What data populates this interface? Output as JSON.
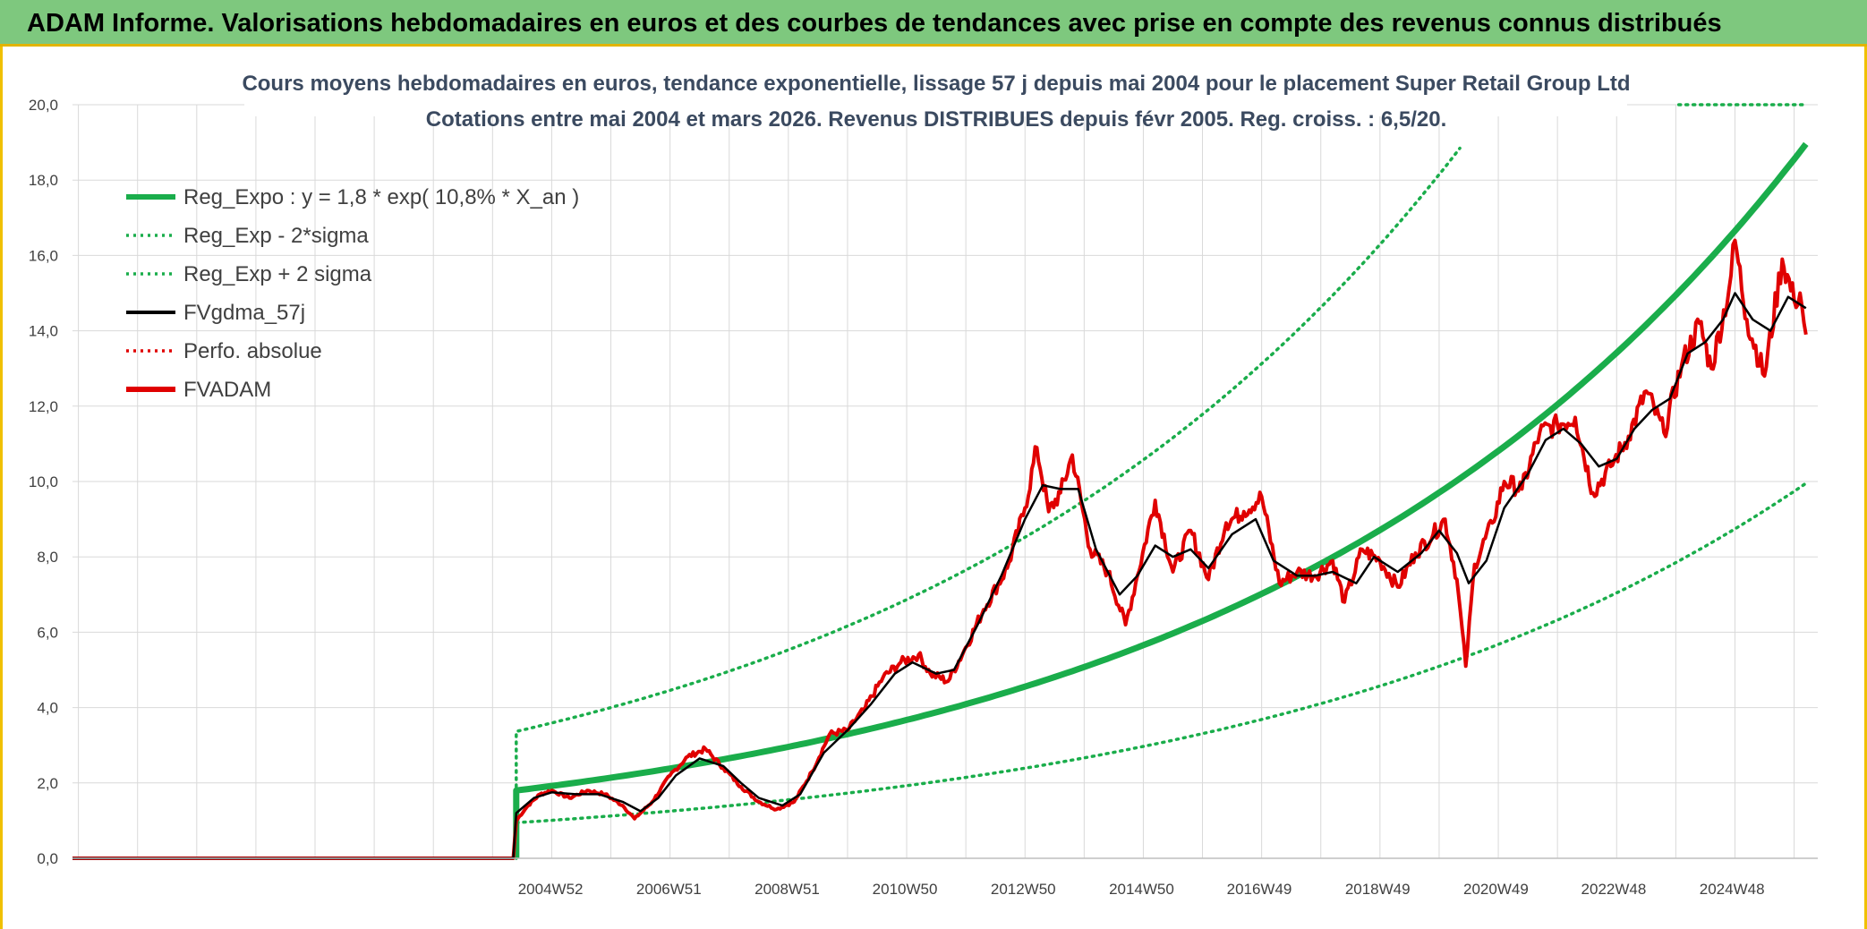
{
  "header": {
    "title": "ADAM Informe. Valorisations hebdomadaires en euros et des courbes de tendances avec prise en compte des revenus connus distribués"
  },
  "colors": {
    "header_bg": "#7ec87e",
    "trend": "#1aad4b",
    "fvadam": "#e00000",
    "fvgdma": "#000000",
    "perfo": "#e00000",
    "grid": "#d9d9d9"
  },
  "chart_data": {
    "type": "line",
    "title_line1": "Cours moyens hebdomadaires en euros, tendance exponentielle, lissage 57 j depuis mai 2004 pour le placement Super Retail Group Ltd",
    "title_line2": "Cotations entre mai 2004 et mars 2026. Revenus DISTRIBUES depuis févr 2005. Reg. croiss. : 6,5/20.",
    "xlabel": "",
    "ylabel": "",
    "ylim": [
      0,
      20
    ],
    "yticks": [
      "0,0",
      "2,0",
      "4,0",
      "6,0",
      "8,0",
      "10,0",
      "12,0",
      "14,0",
      "16,0",
      "18,0",
      "20,0"
    ],
    "xlim": [
      1996.9,
      2026.4
    ],
    "xticks": [
      {
        "label": "2004W52",
        "year": 2004.98
      },
      {
        "label": "2006W51",
        "year": 2006.98
      },
      {
        "label": "2008W51",
        "year": 2008.98
      },
      {
        "label": "2010W50",
        "year": 2010.97
      },
      {
        "label": "2012W50",
        "year": 2012.97
      },
      {
        "label": "2014W50",
        "year": 2014.97
      },
      {
        "label": "2016W49",
        "year": 2016.96
      },
      {
        "label": "2018W49",
        "year": 2018.96
      },
      {
        "label": "2020W49",
        "year": 2020.96
      },
      {
        "label": "2022W48",
        "year": 2022.95
      },
      {
        "label": "2024W48",
        "year": 2024.95
      }
    ],
    "legend": [
      {
        "key": "reg",
        "label": "Reg_Expo : y = 1,8 * exp( 10,8% *  X_an )",
        "style": "thick-solid",
        "color": "#1aad4b"
      },
      {
        "key": "low",
        "label": "Reg_Exp - 2*sigma",
        "style": "dotted",
        "color": "#1aad4b"
      },
      {
        "key": "high",
        "label": "Reg_Exp + 2 sigma",
        "style": "dotted",
        "color": "#1aad4b"
      },
      {
        "key": "gdma",
        "label": "FVgdma_57j",
        "style": "solid",
        "color": "#000000"
      },
      {
        "key": "perfo",
        "label": "Perfo. absolue",
        "style": "dotted",
        "color": "#e00000"
      },
      {
        "key": "adam",
        "label": "FVADAM",
        "style": "thick-solid",
        "color": "#e00000"
      }
    ],
    "series": [
      {
        "name": "Reg_Expo",
        "model": {
          "a": 1.8,
          "rate": 0.108,
          "start": 2004.4,
          "end": 2026.2
        }
      },
      {
        "name": "Reg_Exp - 2*sigma",
        "model": {
          "factor": 0.525,
          "start": 2004.4,
          "end": 2026.2
        }
      },
      {
        "name": "Reg_Exp + 2 sigma",
        "model": {
          "factor": 1.87,
          "start": 2004.4,
          "end": 2026.2,
          "cap": 20
        }
      },
      {
        "name": "FVADAM",
        "points": [
          [
            1996.9,
            0.0
          ],
          [
            2004.35,
            0.0
          ],
          [
            2004.4,
            1.0
          ],
          [
            2004.6,
            1.4
          ],
          [
            2004.8,
            1.7
          ],
          [
            2005.0,
            1.8
          ],
          [
            2005.3,
            1.6
          ],
          [
            2005.6,
            1.8
          ],
          [
            2005.9,
            1.7
          ],
          [
            2006.2,
            1.4
          ],
          [
            2006.4,
            1.05
          ],
          [
            2006.7,
            1.5
          ],
          [
            2007.0,
            2.2
          ],
          [
            2007.3,
            2.7
          ],
          [
            2007.6,
            2.9
          ],
          [
            2007.9,
            2.4
          ],
          [
            2008.2,
            1.9
          ],
          [
            2008.5,
            1.5
          ],
          [
            2008.8,
            1.3
          ],
          [
            2009.1,
            1.5
          ],
          [
            2009.4,
            2.3
          ],
          [
            2009.7,
            3.3
          ],
          [
            2010.0,
            3.4
          ],
          [
            2010.3,
            4.0
          ],
          [
            2010.6,
            4.8
          ],
          [
            2010.9,
            5.2
          ],
          [
            2011.2,
            5.4
          ],
          [
            2011.4,
            4.9
          ],
          [
            2011.7,
            4.7
          ],
          [
            2012.0,
            5.6
          ],
          [
            2012.3,
            6.6
          ],
          [
            2012.7,
            7.7
          ],
          [
            2013.0,
            9.3
          ],
          [
            2013.2,
            10.9
          ],
          [
            2013.4,
            9.2
          ],
          [
            2013.6,
            9.7
          ],
          [
            2013.8,
            10.7
          ],
          [
            2014.1,
            8.2
          ],
          [
            2014.4,
            7.6
          ],
          [
            2014.7,
            6.2
          ],
          [
            2014.9,
            7.5
          ],
          [
            2015.2,
            9.5
          ],
          [
            2015.5,
            7.6
          ],
          [
            2015.8,
            8.7
          ],
          [
            2016.1,
            7.4
          ],
          [
            2016.4,
            8.9
          ],
          [
            2016.7,
            9.2
          ],
          [
            2017.0,
            9.6
          ],
          [
            2017.3,
            7.3
          ],
          [
            2017.6,
            7.6
          ],
          [
            2017.9,
            7.5
          ],
          [
            2018.2,
            7.9
          ],
          [
            2018.4,
            6.8
          ],
          [
            2018.7,
            8.2
          ],
          [
            2019.0,
            7.9
          ],
          [
            2019.3,
            7.2
          ],
          [
            2019.6,
            8.1
          ],
          [
            2019.9,
            8.6
          ],
          [
            2020.1,
            9.0
          ],
          [
            2020.3,
            7.4
          ],
          [
            2020.45,
            5.1
          ],
          [
            2020.6,
            7.8
          ],
          [
            2020.9,
            8.9
          ],
          [
            2021.1,
            10.0
          ],
          [
            2021.4,
            9.8
          ],
          [
            2021.7,
            11.3
          ],
          [
            2022.0,
            11.5
          ],
          [
            2022.3,
            11.7
          ],
          [
            2022.6,
            9.7
          ],
          [
            2022.9,
            10.4
          ],
          [
            2023.2,
            11.2
          ],
          [
            2023.5,
            12.4
          ],
          [
            2023.8,
            11.3
          ],
          [
            2024.1,
            13.1
          ],
          [
            2024.4,
            14.2
          ],
          [
            2024.6,
            13.0
          ],
          [
            2024.9,
            15.1
          ],
          [
            2025.0,
            16.4
          ],
          [
            2025.2,
            14.3
          ],
          [
            2025.5,
            12.8
          ],
          [
            2025.8,
            15.9
          ],
          [
            2026.0,
            14.8
          ],
          [
            2026.1,
            15.0
          ],
          [
            2026.2,
            13.9
          ]
        ]
      },
      {
        "name": "FVgdma_57j",
        "points": [
          [
            1996.9,
            0.0
          ],
          [
            2004.35,
            0.0
          ],
          [
            2004.4,
            1.2
          ],
          [
            2004.7,
            1.6
          ],
          [
            2005.0,
            1.75
          ],
          [
            2005.4,
            1.7
          ],
          [
            2005.8,
            1.7
          ],
          [
            2006.2,
            1.5
          ],
          [
            2006.5,
            1.25
          ],
          [
            2006.8,
            1.6
          ],
          [
            2007.1,
            2.2
          ],
          [
            2007.5,
            2.65
          ],
          [
            2007.9,
            2.45
          ],
          [
            2008.2,
            2.0
          ],
          [
            2008.5,
            1.6
          ],
          [
            2008.9,
            1.4
          ],
          [
            2009.2,
            1.7
          ],
          [
            2009.6,
            2.8
          ],
          [
            2010.0,
            3.4
          ],
          [
            2010.4,
            4.1
          ],
          [
            2010.8,
            4.9
          ],
          [
            2011.1,
            5.2
          ],
          [
            2011.5,
            4.9
          ],
          [
            2011.8,
            5.0
          ],
          [
            2012.2,
            6.2
          ],
          [
            2012.6,
            7.5
          ],
          [
            2013.0,
            9.0
          ],
          [
            2013.3,
            9.9
          ],
          [
            2013.6,
            9.8
          ],
          [
            2013.9,
            9.8
          ],
          [
            2014.2,
            8.2
          ],
          [
            2014.6,
            7.0
          ],
          [
            2014.9,
            7.5
          ],
          [
            2015.2,
            8.3
          ],
          [
            2015.5,
            8.0
          ],
          [
            2015.8,
            8.2
          ],
          [
            2016.1,
            7.7
          ],
          [
            2016.5,
            8.6
          ],
          [
            2016.9,
            9.0
          ],
          [
            2017.2,
            7.9
          ],
          [
            2017.6,
            7.5
          ],
          [
            2017.9,
            7.5
          ],
          [
            2018.2,
            7.6
          ],
          [
            2018.6,
            7.3
          ],
          [
            2018.9,
            8.0
          ],
          [
            2019.3,
            7.6
          ],
          [
            2019.7,
            8.1
          ],
          [
            2020.0,
            8.7
          ],
          [
            2020.3,
            8.1
          ],
          [
            2020.5,
            7.3
          ],
          [
            2020.8,
            7.9
          ],
          [
            2021.1,
            9.3
          ],
          [
            2021.5,
            10.2
          ],
          [
            2021.8,
            11.1
          ],
          [
            2022.1,
            11.4
          ],
          [
            2022.4,
            11.0
          ],
          [
            2022.7,
            10.4
          ],
          [
            2023.0,
            10.6
          ],
          [
            2023.3,
            11.4
          ],
          [
            2023.6,
            11.9
          ],
          [
            2023.9,
            12.2
          ],
          [
            2024.2,
            13.4
          ],
          [
            2024.5,
            13.7
          ],
          [
            2024.8,
            14.3
          ],
          [
            2025.0,
            15.0
          ],
          [
            2025.3,
            14.3
          ],
          [
            2025.6,
            14.0
          ],
          [
            2025.9,
            14.9
          ],
          [
            2026.2,
            14.6
          ]
        ]
      },
      {
        "name": "Perfo. absolue",
        "points": [
          [
            1996.9,
            0.0
          ],
          [
            2004.35,
            0.0
          ]
        ]
      }
    ]
  }
}
